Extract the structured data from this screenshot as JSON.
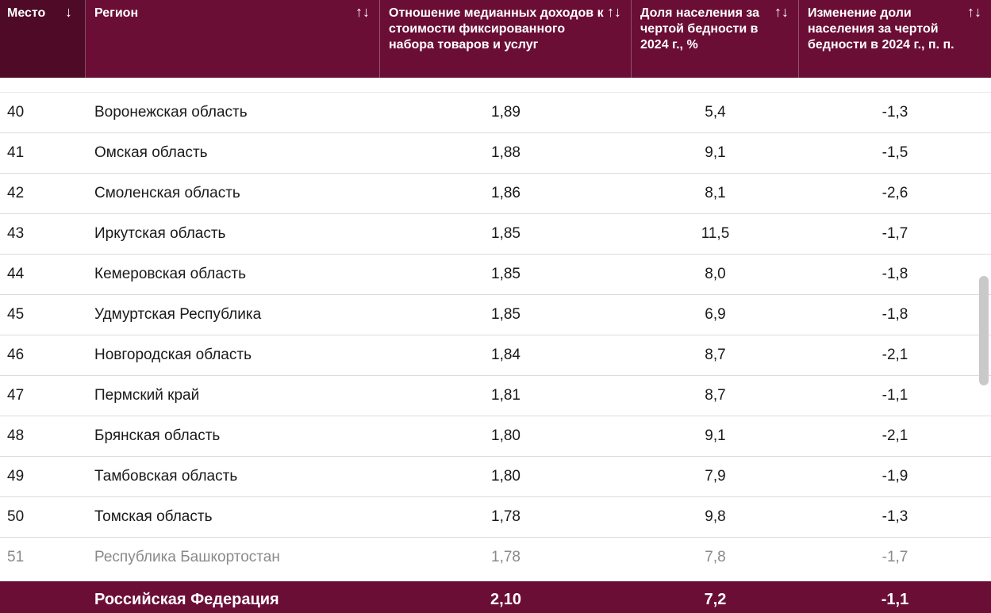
{
  "header": {
    "place": "Место",
    "place_sort": "↓",
    "region": "Регион",
    "ratio": "Отношение медианных доходов к стоимости фиксированного набора товаров и услуг",
    "share": "Доля населения за чертой бедности в 2024 г., %",
    "change": "Изменение доли населения за чертой бедности в 2024 г., п. п.",
    "sort_icon": "↑↓"
  },
  "rows": [
    {
      "place": "40",
      "region": "Воронежская область",
      "ratio": "1,89",
      "share": "5,4",
      "change": "-1,3"
    },
    {
      "place": "41",
      "region": "Омская область",
      "ratio": "1,88",
      "share": "9,1",
      "change": "-1,5"
    },
    {
      "place": "42",
      "region": "Смоленская область",
      "ratio": "1,86",
      "share": "8,1",
      "change": "-2,6"
    },
    {
      "place": "43",
      "region": "Иркутская область",
      "ratio": "1,85",
      "share": "11,5",
      "change": "-1,7"
    },
    {
      "place": "44",
      "region": "Кемеровская область",
      "ratio": "1,85",
      "share": "8,0",
      "change": "-1,8"
    },
    {
      "place": "45",
      "region": "Удмуртская Республика",
      "ratio": "1,85",
      "share": "6,9",
      "change": "-1,8"
    },
    {
      "place": "46",
      "region": "Новгородская область",
      "ratio": "1,84",
      "share": "8,7",
      "change": "-2,1"
    },
    {
      "place": "47",
      "region": "Пермский край",
      "ratio": "1,81",
      "share": "8,7",
      "change": "-1,1"
    },
    {
      "place": "48",
      "region": "Брянская область",
      "ratio": "1,80",
      "share": "9,1",
      "change": "-2,1"
    },
    {
      "place": "49",
      "region": "Тамбовская область",
      "ratio": "1,80",
      "share": "7,9",
      "change": "-1,9"
    },
    {
      "place": "50",
      "region": "Томская область",
      "ratio": "1,78",
      "share": "9,8",
      "change": "-1,3"
    },
    {
      "place": "51",
      "region": "Республика Башкортостан",
      "ratio": "1,78",
      "share": "7,8",
      "change": "-1,7"
    }
  ],
  "footer": {
    "region": "Российская Федерация",
    "ratio": "2,10",
    "share": "7,2",
    "change": "-1,1"
  },
  "colors": {
    "header_bg": "#6b0e36",
    "header_place_bg": "#4f0a27"
  }
}
